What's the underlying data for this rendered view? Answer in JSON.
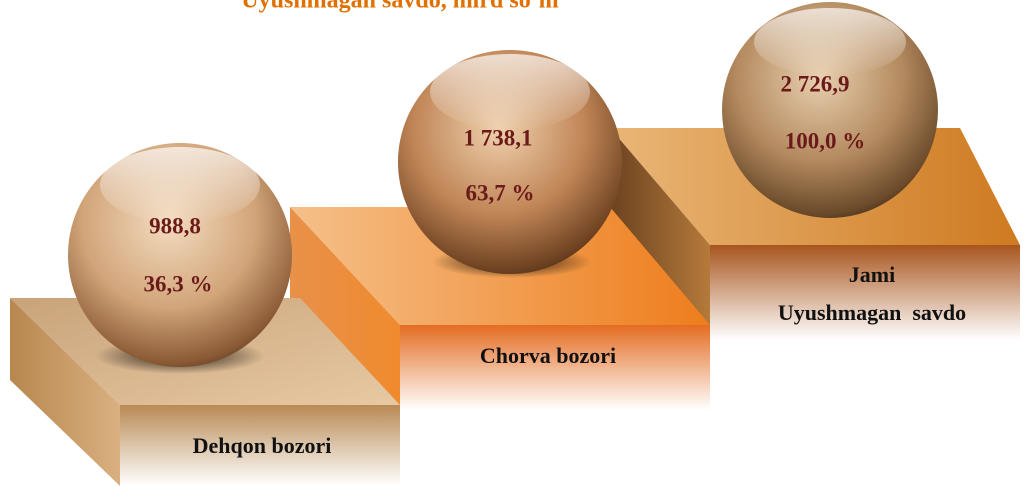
{
  "title": "Uyushmagan savdo, mlrd so‘m",
  "items": [
    {
      "label": [
        "Dehqon bozori"
      ],
      "value": "988,8",
      "share": "36,3 %"
    },
    {
      "label": [
        "Chorva bozori"
      ],
      "value": "1 738,1",
      "share": "63,7 %"
    },
    {
      "label": [
        "Jami",
        "Uyushmagan  savdo"
      ],
      "value": "2 726,9",
      "share": "100,0 %"
    }
  ]
}
